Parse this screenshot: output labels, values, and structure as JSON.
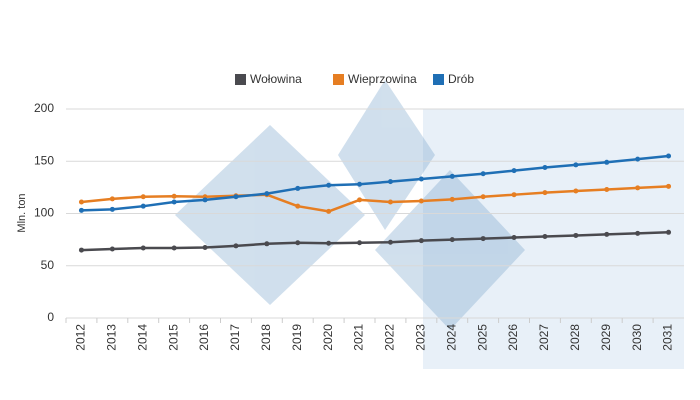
{
  "chart_data": {
    "type": "line",
    "y_label": "Mln. ton",
    "categories": [
      "2012",
      "2013",
      "2014",
      "2015",
      "2016",
      "2017",
      "2018",
      "2019",
      "2020",
      "2021",
      "2022",
      "2023",
      "2024",
      "2025",
      "2026",
      "2027",
      "2028",
      "2029",
      "2030",
      "2031"
    ],
    "series": [
      {
        "name": "Wołowina",
        "color": "#4a4a4f",
        "values": [
          65,
          66,
          67,
          67,
          67.5,
          69,
          71,
          72,
          71.5,
          72,
          72.5,
          74,
          75,
          76,
          77,
          78,
          79,
          80,
          81,
          82
        ]
      },
      {
        "name": "Wieprzowina",
        "color": "#e67e22",
        "values": [
          111,
          114,
          116,
          116.5,
          116,
          117,
          118,
          107,
          102,
          113,
          111,
          112,
          113.5,
          116,
          118,
          120,
          121.5,
          123,
          124.5,
          126
        ]
      },
      {
        "name": "Drób",
        "color": "#1f6fb5",
        "values": [
          103,
          104,
          107,
          111,
          113,
          116,
          119,
          124,
          127,
          128,
          130.5,
          133,
          135.5,
          138,
          141,
          144,
          146.5,
          149,
          152,
          155
        ]
      }
    ],
    "ylim": [
      0,
      200
    ],
    "yticks": [
      0,
      50,
      100,
      150,
      200
    ],
    "grid": true
  }
}
